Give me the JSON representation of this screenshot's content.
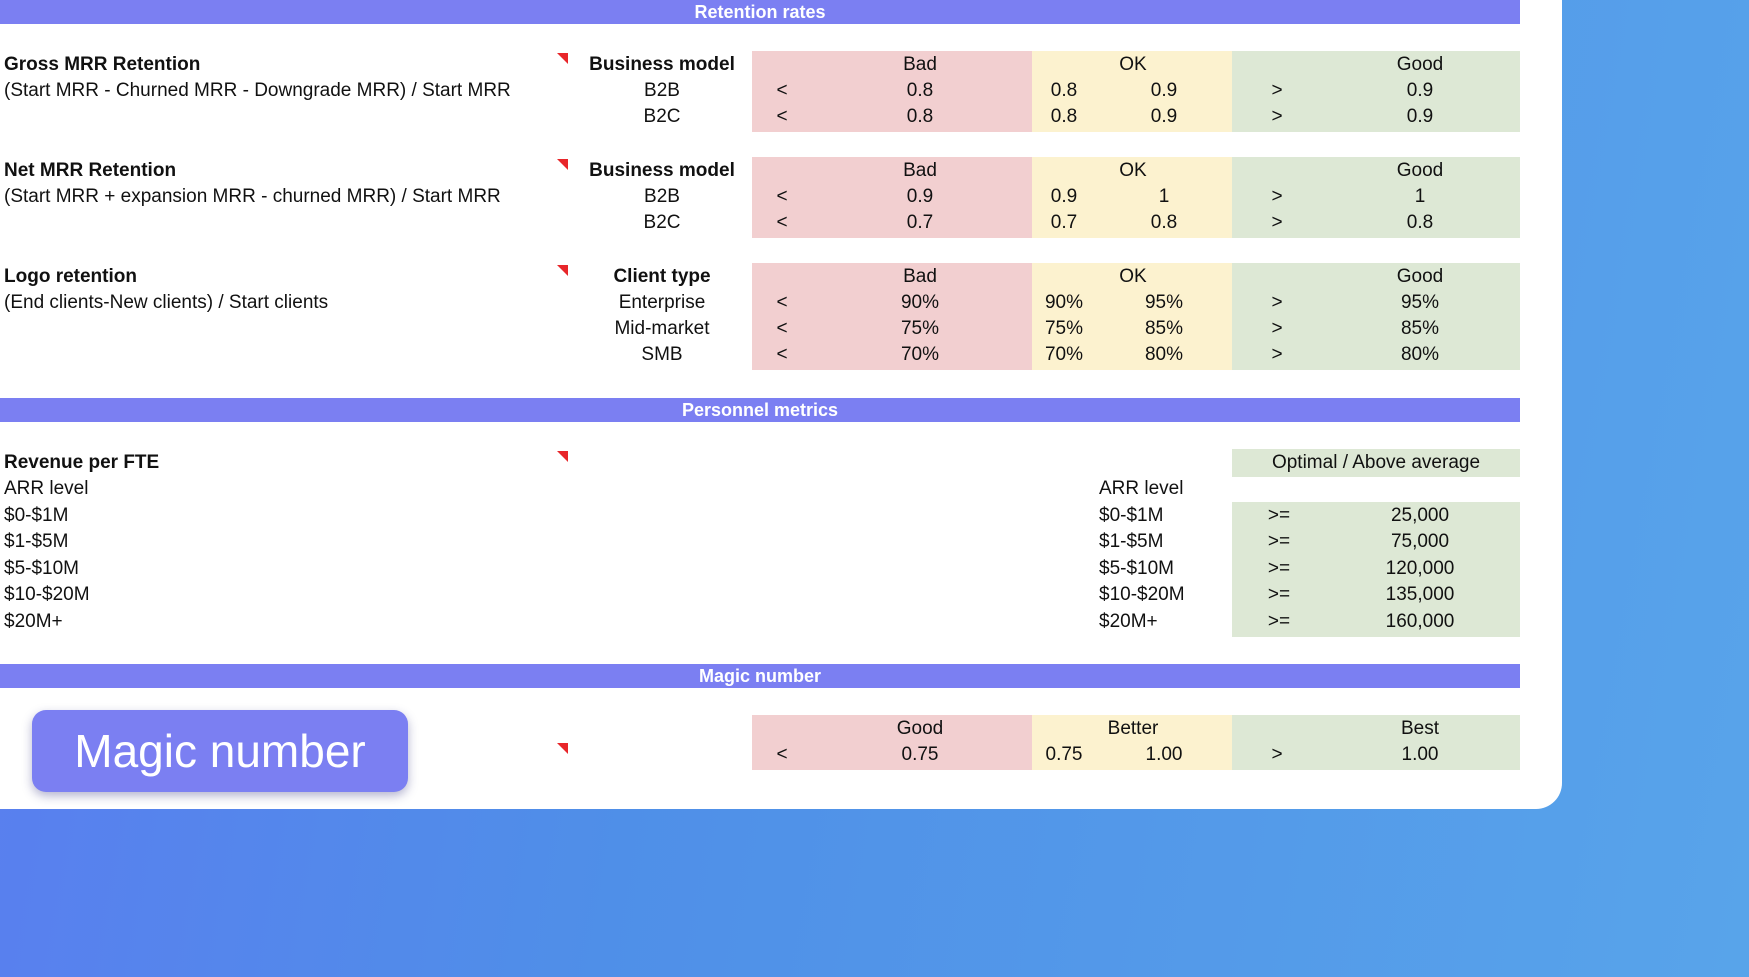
{
  "sections": {
    "retention": "Retention rates",
    "personnel": "Personnel metrics",
    "magic": "Magic number"
  },
  "gross": {
    "title": "Gross MRR Retention",
    "formula": "(Start MRR - Churned MRR - Downgrade MRR) / Start MRR",
    "model_header": "Business model",
    "bad": "Bad",
    "ok": "OK",
    "good": "Good",
    "rows": [
      {
        "label": "B2B",
        "lt": "<",
        "bad": "0.8",
        "ok_lo": "0.8",
        "ok_hi": "0.9",
        "gt": ">",
        "good": "0.9"
      },
      {
        "label": "B2C",
        "lt": "<",
        "bad": "0.8",
        "ok_lo": "0.8",
        "ok_hi": "0.9",
        "gt": ">",
        "good": "0.9"
      }
    ]
  },
  "net": {
    "title": "Net MRR Retention",
    "formula": "(Start MRR + expansion MRR - churned MRR) / Start MRR",
    "model_header": "Business model",
    "bad": "Bad",
    "ok": "OK",
    "good": "Good",
    "rows": [
      {
        "label": "B2B",
        "lt": "<",
        "bad": "0.9",
        "ok_lo": "0.9",
        "ok_hi": "1",
        "gt": ">",
        "good": "1"
      },
      {
        "label": "B2C",
        "lt": "<",
        "bad": "0.7",
        "ok_lo": "0.7",
        "ok_hi": "0.8",
        "gt": ">",
        "good": "0.8"
      }
    ]
  },
  "logo": {
    "title": "Logo retention",
    "formula": "(End clients-New clients) / Start clients",
    "type_header": "Client type",
    "bad": "Bad",
    "ok": "OK",
    "good": "Good",
    "rows": [
      {
        "label": "Enterprise",
        "lt": "<",
        "bad": "90%",
        "ok_lo": "90%",
        "ok_hi": "95%",
        "gt": ">",
        "good": "95%"
      },
      {
        "label": "Mid-market",
        "lt": "<",
        "bad": "75%",
        "ok_lo": "75%",
        "ok_hi": "85%",
        "gt": ">",
        "good": "85%"
      },
      {
        "label": "SMB",
        "lt": "<",
        "bad": "70%",
        "ok_lo": "70%",
        "ok_hi": "80%",
        "gt": ">",
        "good": "80%"
      }
    ]
  },
  "fte": {
    "title": "Revenue per FTE",
    "arr_label": "ARR level",
    "levels": [
      "$0-$1M",
      "$1-$5M",
      "$5-$10M",
      "$10-$20M",
      "$20M+"
    ],
    "optimal_header": "Optimal / Above average",
    "right_arr_label": "ARR level",
    "rows": [
      {
        "level": "$0-$1M",
        "op": ">=",
        "value": "25,000"
      },
      {
        "level": "$1-$5M",
        "op": ">=",
        "value": "75,000"
      },
      {
        "level": "$5-$10M",
        "op": ">=",
        "value": "120,000"
      },
      {
        "level": "$10-$20M",
        "op": ">=",
        "value": "135,000"
      },
      {
        "level": "$20M+",
        "op": ">=",
        "value": "160,000"
      }
    ]
  },
  "magic": {
    "label": "Magic number",
    "good": "Good",
    "better": "Better",
    "best": "Best",
    "lt": "<",
    "good_val": "0.75",
    "better_lo": "0.75",
    "better_hi": "1.00",
    "gt": ">",
    "best_val": "1.00"
  },
  "colors": {
    "band": "#7b7ff2",
    "bad": "#f2cfd0",
    "ok": "#fcf2cf",
    "good": "#dde8d5",
    "flag": "#e8262a"
  }
}
